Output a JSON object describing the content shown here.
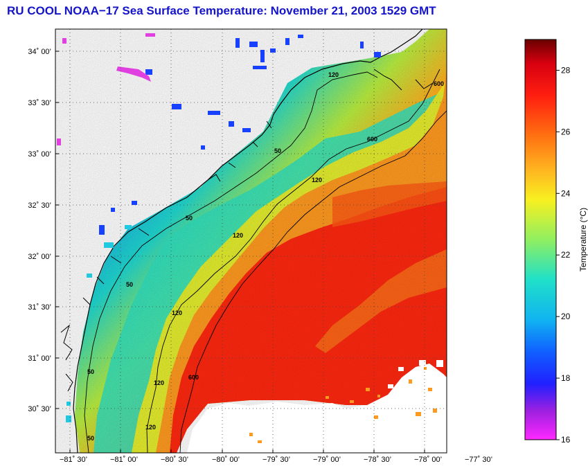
{
  "title": "RU COOL  NOAA−17  Sea Surface Temperature:  November 21, 2003 1529 GMT",
  "map": {
    "lat_ticks": [
      "34˚ 00’",
      "33˚ 30’",
      "33˚ 00’",
      "32˚ 30’",
      "32˚ 00’",
      "31˚ 30’",
      "31˚ 00’",
      "30˚ 30’"
    ],
    "lon_ticks": [
      "−81˚ 30’",
      "−81˚ 00’",
      "−80˚ 30’",
      "−80˚ 00’",
      "−79˚ 30’",
      "−79˚ 00’",
      "−78˚ 30’",
      "−78˚ 00’",
      "−77˚ 30’"
    ],
    "contour_labels": [
      "50",
      "50",
      "50",
      "50",
      "50",
      "120",
      "120",
      "120",
      "120",
      "120",
      "120",
      "600",
      "600",
      "600"
    ]
  },
  "colorbar": {
    "label": "Temperature (°C)",
    "ticks": [
      "28",
      "26",
      "24",
      "22",
      "20",
      "18",
      "16"
    ]
  }
}
